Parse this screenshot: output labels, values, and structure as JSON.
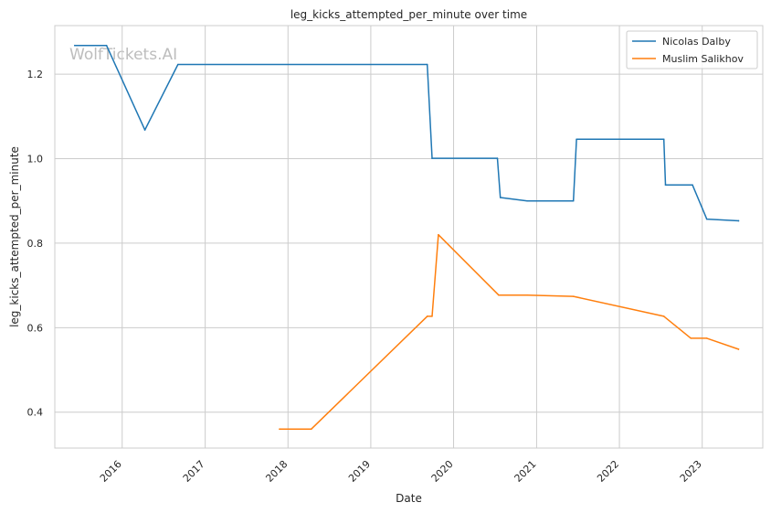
{
  "chart_data": {
    "type": "line",
    "title": "leg_kicks_attempted_per_minute over time",
    "xlabel": "Date",
    "ylabel": "leg_kicks_attempted_per_minute",
    "watermark": "WolfTickets.AI",
    "x_ticks": [
      "2016",
      "2017",
      "2018",
      "2019",
      "2020",
      "2021",
      "2022",
      "2023"
    ],
    "y_ticks": [
      "0.4",
      "0.6",
      "0.8",
      "1.0",
      "1.2"
    ],
    "xlim": [
      "2015-03-10",
      "2023-09-25"
    ],
    "ylim": [
      0.315,
      1.315
    ],
    "grid": true,
    "legend_position": "top-right",
    "series": [
      {
        "name": "Nicolas Dalby",
        "color": "#1f77b4",
        "points": [
          [
            "2015-06-06",
            1.268
          ],
          [
            "2015-10-24",
            1.268
          ],
          [
            "2016-04-10",
            1.068
          ],
          [
            "2016-09-03",
            1.223
          ],
          [
            "2019-09-07",
            1.223
          ],
          [
            "2019-09-28",
            1.001
          ],
          [
            "2020-07-12",
            1.001
          ],
          [
            "2020-07-25",
            0.908
          ],
          [
            "2020-11-21",
            0.9
          ],
          [
            "2021-06-12",
            0.9
          ],
          [
            "2021-06-26",
            1.046
          ],
          [
            "2022-07-16",
            1.046
          ],
          [
            "2022-07-23",
            0.938
          ],
          [
            "2022-11-19",
            0.938
          ],
          [
            "2023-01-21",
            0.857
          ],
          [
            "2023-06-10",
            0.853
          ]
        ]
      },
      {
        "name": "Muslim Salikhov",
        "color": "#ff7f0e",
        "points": [
          [
            "2017-11-25",
            0.36
          ],
          [
            "2018-04-14",
            0.36
          ],
          [
            "2019-09-07",
            0.627
          ],
          [
            "2019-09-28",
            0.627
          ],
          [
            "2019-10-26",
            0.82
          ],
          [
            "2020-07-18",
            0.677
          ],
          [
            "2020-11-21",
            0.677
          ],
          [
            "2021-06-12",
            0.674
          ],
          [
            "2022-07-16",
            0.627
          ],
          [
            "2022-11-12",
            0.575
          ],
          [
            "2023-01-21",
            0.575
          ],
          [
            "2023-06-10",
            0.549
          ]
        ]
      }
    ]
  }
}
